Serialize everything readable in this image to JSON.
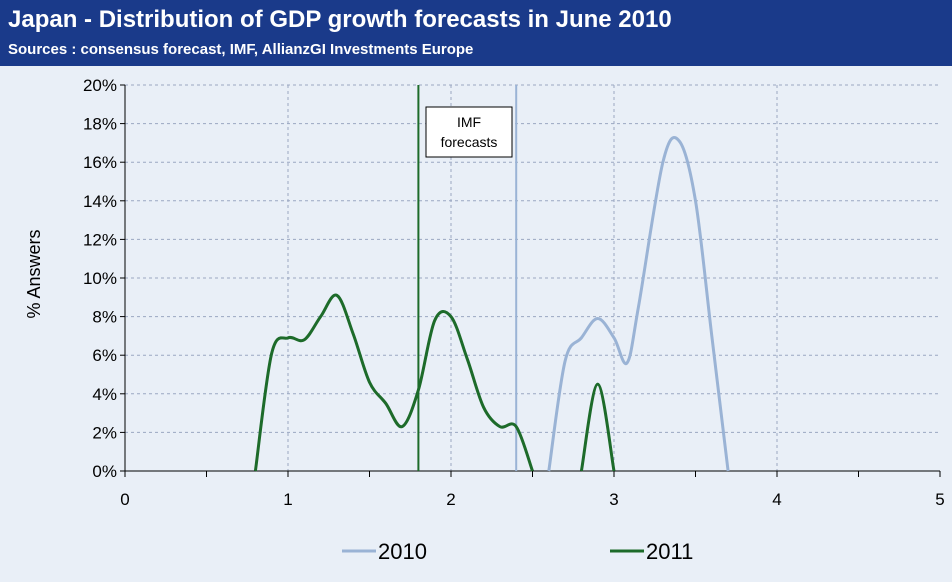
{
  "header": {
    "title": "Japan - Distribution of GDP growth forecasts in June 2010",
    "subtitle": "Sources : consensus forecast, IMF, AllianzGI Investments Europe"
  },
  "colors": {
    "header_bg": "#1a3a8a",
    "background": "#e9eff7",
    "series_2010": "#9ab3d5",
    "series_2011": "#1d6b2a",
    "grid": "#9aa7c2"
  },
  "chart_data": {
    "type": "line",
    "ylabel": "% Answers",
    "xlabel": "",
    "xlim": [
      0,
      5
    ],
    "ylim": [
      0,
      20
    ],
    "x_ticks": [
      "0",
      "1",
      "2",
      "3",
      "4",
      "5"
    ],
    "y_ticks": [
      "0%",
      "2%",
      "4%",
      "6%",
      "8%",
      "10%",
      "12%",
      "14%",
      "16%",
      "18%",
      "20%"
    ],
    "grid": true,
    "legend": "bottom",
    "series": [
      {
        "name": "2010",
        "color": "#9ab3d5",
        "points": [
          [
            2.6,
            0
          ],
          [
            2.7,
            5.7
          ],
          [
            2.8,
            6.9
          ],
          [
            2.9,
            7.9
          ],
          [
            3.0,
            6.9
          ],
          [
            3.08,
            5.6
          ],
          [
            3.15,
            8.5
          ],
          [
            3.3,
            16.0
          ],
          [
            3.4,
            17.1
          ],
          [
            3.5,
            14.0
          ],
          [
            3.6,
            7.0
          ],
          [
            3.7,
            0
          ]
        ]
      },
      {
        "name": "2011",
        "color": "#1d6b2a",
        "points": [
          [
            0.8,
            0
          ],
          [
            0.9,
            6.1
          ],
          [
            1.0,
            6.9
          ],
          [
            1.1,
            6.8
          ],
          [
            1.2,
            8.0
          ],
          [
            1.3,
            9.1
          ],
          [
            1.4,
            7.1
          ],
          [
            1.5,
            4.6
          ],
          [
            1.6,
            3.5
          ],
          [
            1.7,
            2.3
          ],
          [
            1.8,
            4.2
          ],
          [
            1.9,
            7.8
          ],
          [
            2.0,
            8.0
          ],
          [
            2.1,
            5.8
          ],
          [
            2.2,
            3.3
          ],
          [
            2.3,
            2.3
          ],
          [
            2.4,
            2.3
          ],
          [
            2.5,
            0
          ],
          [
            2.8,
            0
          ],
          [
            2.9,
            4.5
          ],
          [
            3.0,
            0
          ]
        ]
      }
    ],
    "vertical_markers": [
      {
        "x": 1.8,
        "series": "2011"
      },
      {
        "x": 2.4,
        "series": "2010"
      }
    ],
    "annotation": {
      "line1": "IMF",
      "line2": "forecasts"
    }
  }
}
